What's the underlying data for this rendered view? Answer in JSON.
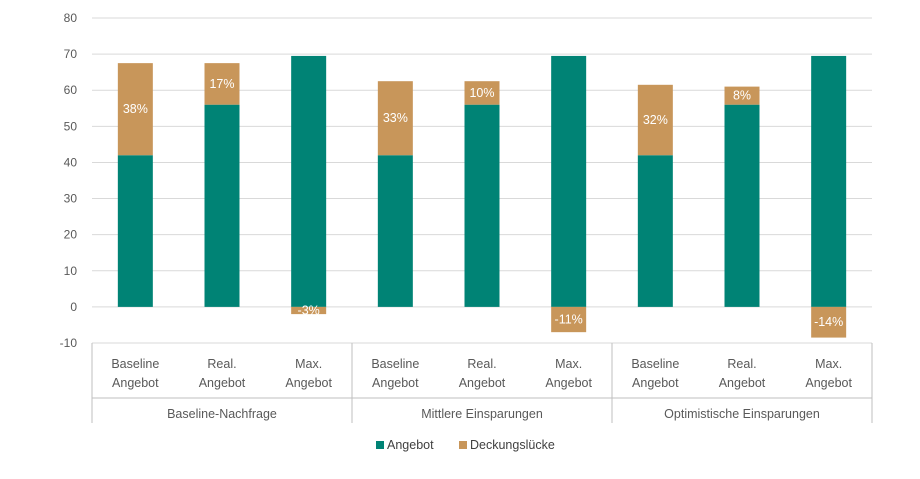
{
  "chart_data": {
    "type": "bar",
    "stacked": true,
    "ylim": [
      -10,
      80
    ],
    "yticks": [
      -10,
      0,
      10,
      20,
      30,
      40,
      50,
      60,
      70,
      80
    ],
    "grid": true,
    "legend_position": "bottom",
    "groups": [
      {
        "label": "Baseline-Nachfrage",
        "categories": [
          {
            "line1": "Baseline",
            "line2": "Angebot",
            "angebot": 42,
            "luecke": 25.5,
            "label": "38%"
          },
          {
            "line1": "Real.",
            "line2": "Angebot",
            "angebot": 56,
            "luecke": 11.5,
            "label": "17%"
          },
          {
            "line1": "Max.",
            "line2": "Angebot",
            "angebot": 69.5,
            "luecke": -2,
            "label": "-3%"
          }
        ]
      },
      {
        "label": "Mittlere Einsparungen",
        "categories": [
          {
            "line1": "Baseline",
            "line2": "Angebot",
            "angebot": 42,
            "luecke": 20.5,
            "label": "33%"
          },
          {
            "line1": "Real.",
            "line2": "Angebot",
            "angebot": 56,
            "luecke": 6.5,
            "label": "10%"
          },
          {
            "line1": "Max.",
            "line2": "Angebot",
            "angebot": 69.5,
            "luecke": -7,
            "label": "-11%"
          }
        ]
      },
      {
        "label": "Optimistische Einsparungen",
        "categories": [
          {
            "line1": "Baseline",
            "line2": "Angebot",
            "angebot": 42,
            "luecke": 19.5,
            "label": "32%"
          },
          {
            "line1": "Real.",
            "line2": "Angebot",
            "angebot": 56,
            "luecke": 5,
            "label": "8%"
          },
          {
            "line1": "Max.",
            "line2": "Angebot",
            "angebot": 69.5,
            "luecke": -8.5,
            "label": "-14%"
          }
        ]
      }
    ],
    "series": [
      {
        "key": "angebot",
        "name": "Angebot",
        "color": "#008375"
      },
      {
        "key": "luecke",
        "name": "Deckungslücke",
        "color": "#C8965A"
      }
    ],
    "gridline_color": "#d9d9d9",
    "axis_color": "#bfbfbf"
  }
}
